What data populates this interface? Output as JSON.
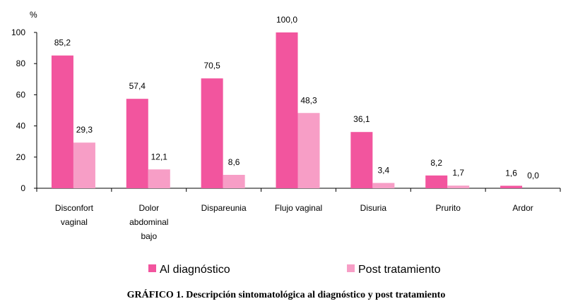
{
  "chart_data": {
    "type": "bar",
    "ylabel": "%",
    "ylim": [
      0,
      100
    ],
    "yticks": [
      "0",
      "20",
      "40",
      "60",
      "80",
      "100"
    ],
    "categories": [
      [
        "Disconfort",
        "vaginal"
      ],
      [
        "Dolor",
        "abdominal",
        "bajo"
      ],
      [
        "Dispareunia"
      ],
      [
        "Flujo vaginal"
      ],
      [
        "Disuria"
      ],
      [
        "Prurito"
      ],
      [
        "Ardor"
      ]
    ],
    "series": [
      {
        "name": "Al diagnóstico",
        "color": "#f2559e",
        "values": [
          85.2,
          57.4,
          70.5,
          100.0,
          36.1,
          8.2,
          1.6
        ],
        "labels": [
          "85,2",
          "57,4",
          "70,5",
          "100,0",
          "36,1",
          "8,2",
          "1,6"
        ]
      },
      {
        "name": "Post tratamiento",
        "color": "#f79ec6",
        "values": [
          29.3,
          12.1,
          8.6,
          48.3,
          3.4,
          1.7,
          0.0
        ],
        "labels": [
          "29,3",
          "12,1",
          "8,6",
          "48,3",
          "3,4",
          "1,7",
          "0,0"
        ]
      }
    ],
    "legend_position": "bottom",
    "grid": false
  },
  "caption": "GRÁFICO 1.  Descripción sintomatológica al diagnóstico y post tratamiento"
}
